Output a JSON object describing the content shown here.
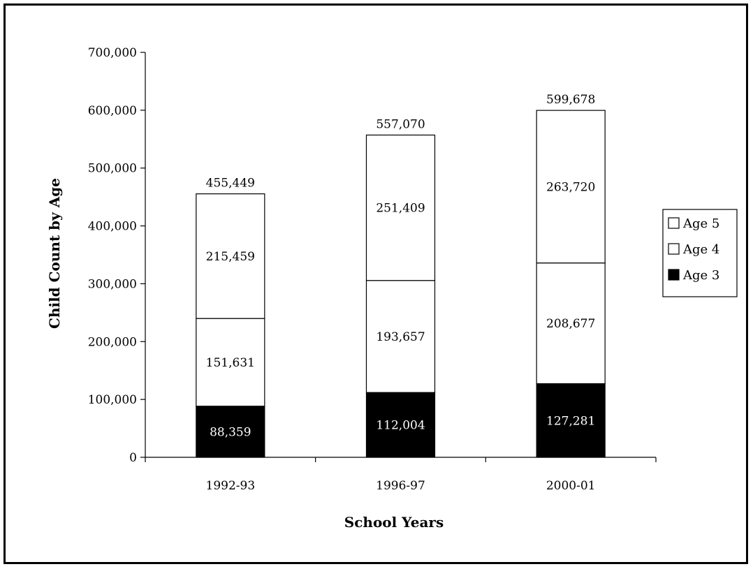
{
  "chart_data": {
    "type": "bar",
    "stacked": true,
    "title": "",
    "xlabel": "School Years",
    "ylabel": "Child Count by Age",
    "ylim": [
      0,
      700000
    ],
    "yticks": [
      0,
      100000,
      200000,
      300000,
      400000,
      500000,
      600000,
      700000
    ],
    "ytick_labels": [
      "0",
      "100,000",
      "200,000",
      "300,000",
      "400,000",
      "500,000",
      "600,000",
      "700,000"
    ],
    "categories": [
      "1992-93",
      "1996-97",
      "2000-01"
    ],
    "series": [
      {
        "name": "Age 3",
        "values": [
          88359,
          112004,
          127281
        ],
        "labels": [
          "88,359",
          "112,004",
          "127,281"
        ],
        "color": "#000000"
      },
      {
        "name": "Age 4",
        "values": [
          151631,
          193657,
          208677
        ],
        "labels": [
          "151,631",
          "193,657",
          "208,677"
        ],
        "color": "#ffffff"
      },
      {
        "name": "Age 5",
        "values": [
          215459,
          251409,
          263720
        ],
        "labels": [
          "215,459",
          "251,409",
          "263,720"
        ],
        "color": "#ffffff"
      }
    ],
    "totals": [
      455449,
      557070,
      599678
    ],
    "total_labels": [
      "455,449",
      "557,070",
      "599,678"
    ],
    "legend": {
      "position": "right",
      "order": [
        "Age 5",
        "Age 4",
        "Age 3"
      ]
    },
    "grid": false
  }
}
